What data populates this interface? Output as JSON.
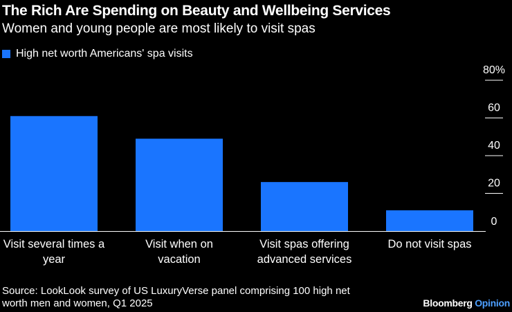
{
  "colors": {
    "background": "#000000",
    "bar": "#1a75ff",
    "text": "#ffffff",
    "gridline": "#ffffff",
    "opinion_accent": "#4d9fff"
  },
  "chart_data": {
    "type": "bar",
    "title": "The Rich Are Spending on Beauty and Wellbeing Services",
    "subtitle": "Women and young people are most likely to visit spas",
    "legend": [
      "High net worth Americans' spa visits"
    ],
    "legend_position": "top-left",
    "categories": [
      [
        "Visit several times a",
        "year"
      ],
      [
        "Visit when on",
        "vacation"
      ],
      [
        "Visit spas offering",
        "advanced services"
      ],
      [
        "Do not visit spas"
      ]
    ],
    "values": [
      61,
      49,
      26,
      11
    ],
    "ylim": [
      0,
      80
    ],
    "yticks": [
      "0",
      "20",
      "40",
      "60",
      "80%"
    ],
    "ytick_values": [
      0,
      20,
      40,
      60,
      80
    ],
    "xlabel": "",
    "ylabel": "",
    "axis_position": "right"
  },
  "footer": {
    "source_line1": "Source: LookLook survey of US LuxuryVerse panel comprising 100 high net",
    "source_line2": "worth men and women, Q1 2025",
    "brand_name": "Bloomberg",
    "brand_suffix": "Opinion"
  }
}
